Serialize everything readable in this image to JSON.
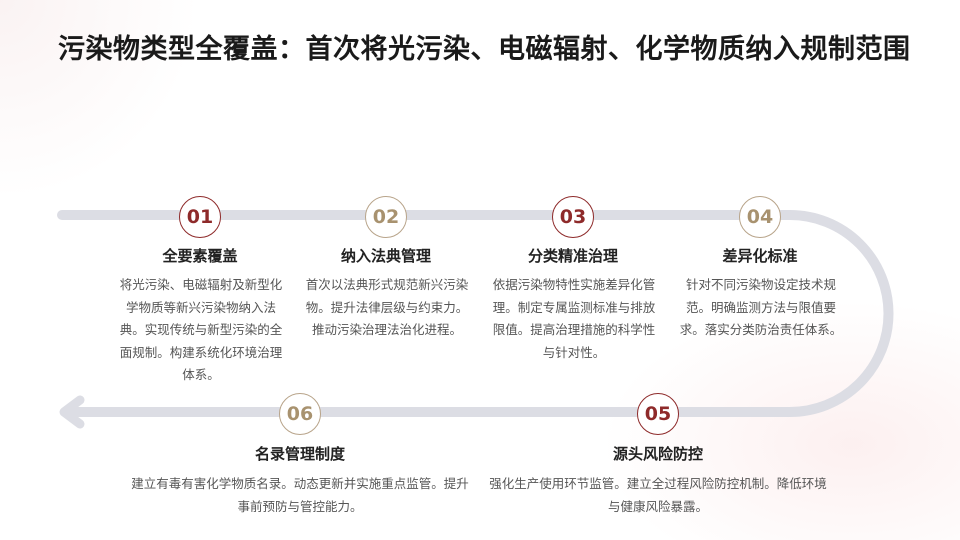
{
  "title": "污染物类型全覆盖：首次将光污染、电磁辐射、化学物质纳入规制范围",
  "colors": {
    "accent_red": "#8e2a2a",
    "accent_gold": "#a8926f",
    "track": "#dcdde4"
  },
  "steps": [
    {
      "num": "01",
      "title": "全要素覆盖",
      "desc": "将光污染、电磁辐射及新型化学物质等新兴污染物纳入法典。实现传统与新型污染的全面规制。构建系统化环境治理体系。"
    },
    {
      "num": "02",
      "title": "纳入法典管理",
      "desc": "首次以法典形式规范新兴污染物。提升法律层级与约束力。推动污染治理法治化进程。"
    },
    {
      "num": "03",
      "title": "分类精准治理",
      "desc": "依据污染物特性实施差异化管理。制定专属监测标准与排放限值。提高治理措施的科学性与针对性。"
    },
    {
      "num": "04",
      "title": "差异化标准",
      "desc": "针对不同污染物设定技术规范。明确监测方法与限值要求。落实分类防治责任体系。"
    },
    {
      "num": "05",
      "title": "源头风险防控",
      "desc": "强化生产使用环节监管。建立全过程风险防控机制。降低环境与健康风险暴露。"
    },
    {
      "num": "06",
      "title": "名录管理制度",
      "desc": "建立有毒有害化学物质名录。动态更新并实施重点监管。提升事前预防与管控能力。"
    }
  ]
}
